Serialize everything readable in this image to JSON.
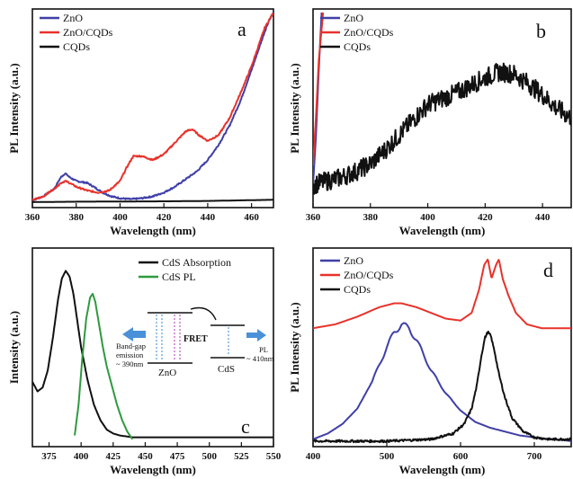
{
  "colors": {
    "zno": "#3f3fa8",
    "zno_cqds": "#e8322b",
    "cqds": "#111111",
    "cds_abs": "#111111",
    "cds_pl": "#2e9a3e",
    "arrow": "#4a90d9",
    "excite": "#c040c0"
  },
  "chart_data": [
    {
      "id": "a",
      "type": "line",
      "letter": "a",
      "xlabel": "Wavelength (nm)",
      "ylabel": "PL Intensity (a.u.)",
      "xlim": [
        360,
        470
      ],
      "ylim": [
        0,
        1
      ],
      "xticks": [
        "360",
        "380",
        "400",
        "420",
        "440",
        "460"
      ],
      "legend": [
        "ZnO",
        "ZnO/CQDs",
        "CQDs"
      ],
      "series": [
        {
          "name": "ZnO",
          "color_key": "zno",
          "x": [
            360,
            365,
            370,
            373,
            375,
            377,
            380,
            385,
            388,
            392,
            396,
            400,
            405,
            410,
            415,
            420,
            425,
            430,
            435,
            440,
            445,
            450,
            455,
            460,
            463,
            466,
            468,
            470
          ],
          "y": [
            0.02,
            0.04,
            0.08,
            0.14,
            0.16,
            0.14,
            0.12,
            0.11,
            0.09,
            0.06,
            0.04,
            0.03,
            0.025,
            0.03,
            0.04,
            0.06,
            0.09,
            0.13,
            0.17,
            0.23,
            0.31,
            0.41,
            0.54,
            0.7,
            0.8,
            0.9,
            0.96,
            1.0
          ]
        },
        {
          "name": "ZnO/CQDs",
          "color_key": "zno_cqds",
          "x": [
            360,
            365,
            370,
            373,
            375,
            377,
            380,
            385,
            390,
            395,
            400,
            403,
            406,
            410,
            415,
            420,
            425,
            430,
            433,
            436,
            440,
            445,
            450,
            455,
            460,
            463,
            466,
            470
          ],
          "y": [
            0.02,
            0.04,
            0.08,
            0.11,
            0.12,
            0.11,
            0.09,
            0.07,
            0.06,
            0.07,
            0.12,
            0.19,
            0.25,
            0.25,
            0.23,
            0.26,
            0.32,
            0.38,
            0.39,
            0.36,
            0.33,
            0.36,
            0.45,
            0.58,
            0.72,
            0.82,
            0.92,
            1.0
          ]
        },
        {
          "name": "CQDs",
          "color_key": "cqds",
          "x": [
            360,
            380,
            400,
            420,
            440,
            460,
            470
          ],
          "y": [
            0.01,
            0.012,
            0.013,
            0.014,
            0.016,
            0.02,
            0.022
          ]
        }
      ]
    },
    {
      "id": "b",
      "type": "line",
      "letter": "b",
      "xlabel": "Wavelength (nm)",
      "ylabel": "PL Intensity (a.u.)",
      "xlim": [
        360,
        450
      ],
      "ylim": [
        0,
        1
      ],
      "xticks": [
        "360",
        "380",
        "400",
        "420",
        "440"
      ],
      "legend": [
        "ZnO",
        "ZnO/CQDs",
        "CQDs"
      ],
      "series": [
        {
          "name": "ZnO",
          "color_key": "zno",
          "x": [
            360,
            361,
            362,
            363
          ],
          "y": [
            0.1,
            0.35,
            0.7,
            1.0
          ]
        },
        {
          "name": "ZnO/CQDs",
          "color_key": "zno_cqds",
          "x": [
            360,
            361,
            362,
            363.5
          ],
          "y": [
            0.2,
            0.45,
            0.75,
            1.0
          ]
        },
        {
          "name": "CQDs",
          "color_key": "cqds",
          "x": [
            360,
            365,
            370,
            375,
            380,
            385,
            390,
            395,
            400,
            405,
            410,
            415,
            420,
            425,
            430,
            435,
            440,
            445,
            450
          ],
          "y": [
            0.1,
            0.12,
            0.14,
            0.17,
            0.21,
            0.28,
            0.36,
            0.44,
            0.52,
            0.55,
            0.58,
            0.62,
            0.66,
            0.69,
            0.68,
            0.63,
            0.57,
            0.5,
            0.45
          ]
        }
      ]
    },
    {
      "id": "c",
      "type": "line",
      "letter": "c",
      "xlabel": "Wavelength (nm)",
      "ylabel": "Intensity (a.u.)",
      "xlim": [
        362,
        550
      ],
      "ylim": [
        0,
        1
      ],
      "xticks": [
        "375",
        "400",
        "425",
        "450",
        "475",
        "500",
        "525",
        "550"
      ],
      "xtick_values": [
        375,
        400,
        425,
        450,
        475,
        500,
        525,
        550
      ],
      "legend": [
        "CdS Absorption",
        "CdS PL"
      ],
      "series": [
        {
          "name": "CdS Absorption",
          "color_key": "cds_abs",
          "x": [
            362,
            366,
            370,
            374,
            378,
            382,
            385,
            388,
            391,
            394,
            397,
            400,
            405,
            410,
            415,
            420,
            425,
            430,
            440,
            460,
            500,
            550
          ],
          "y": [
            0.32,
            0.27,
            0.29,
            0.38,
            0.55,
            0.75,
            0.86,
            0.9,
            0.87,
            0.78,
            0.64,
            0.5,
            0.33,
            0.2,
            0.12,
            0.07,
            0.05,
            0.04,
            0.03,
            0.03,
            0.03,
            0.03
          ]
        },
        {
          "name": "CdS PL",
          "color_key": "cds_pl",
          "x": [
            395,
            398,
            401,
            404,
            407,
            409,
            411,
            414,
            417,
            420,
            424,
            428,
            432,
            436,
            440
          ],
          "y": [
            0.04,
            0.2,
            0.45,
            0.65,
            0.76,
            0.78,
            0.74,
            0.62,
            0.5,
            0.4,
            0.3,
            0.2,
            0.12,
            0.06,
            0.02
          ]
        }
      ],
      "inset": {
        "label_left": "Band-gap emission ~ 390nm",
        "left_line1": "Band-gap",
        "left_line2": "emission",
        "left_line3": "~ 390nm",
        "fret": "FRET",
        "zno": "ZnO",
        "cds": "CdS",
        "pl_line1": "PL",
        "pl_line2": "~ 410nm"
      }
    },
    {
      "id": "d",
      "type": "line",
      "letter": "d",
      "xlabel": "Wavelength (nm)",
      "ylabel": "PL Intensity (a.u.)",
      "xlim": [
        400,
        750
      ],
      "ylim": [
        0,
        1
      ],
      "xticks": [
        "400",
        "500",
        "600",
        "700"
      ],
      "xtick_values": [
        400,
        500,
        600,
        700
      ],
      "legend": [
        "ZnO",
        "ZnO/CQDs",
        "CQDs"
      ],
      "series": [
        {
          "name": "ZnO",
          "color_key": "zno",
          "x": [
            400,
            420,
            440,
            460,
            480,
            500,
            510,
            520,
            530,
            540,
            550,
            560,
            580,
            600,
            620,
            640,
            660,
            680,
            700,
            720,
            740,
            750
          ],
          "y": [
            0.02,
            0.05,
            0.1,
            0.18,
            0.32,
            0.5,
            0.58,
            0.62,
            0.6,
            0.54,
            0.46,
            0.38,
            0.26,
            0.17,
            0.11,
            0.08,
            0.06,
            0.04,
            0.03,
            0.02,
            0.015,
            0.01
          ]
        },
        {
          "name": "ZnO/CQDs",
          "color_key": "zno_cqds",
          "x": [
            400,
            430,
            460,
            490,
            510,
            520,
            540,
            560,
            580,
            600,
            615,
            625,
            632,
            637,
            642,
            648,
            652,
            657,
            665,
            675,
            690,
            710,
            730,
            750
          ],
          "y": [
            0.6,
            0.62,
            0.66,
            0.71,
            0.73,
            0.73,
            0.71,
            0.68,
            0.65,
            0.64,
            0.68,
            0.8,
            0.93,
            0.96,
            0.86,
            0.93,
            0.96,
            0.86,
            0.77,
            0.68,
            0.62,
            0.6,
            0.6,
            0.6
          ]
        },
        {
          "name": "CQDs",
          "color_key": "cqds",
          "x": [
            400,
            500,
            560,
            590,
            605,
            615,
            622,
            628,
            633,
            637,
            641,
            646,
            652,
            660,
            670,
            685,
            700,
            720,
            750
          ],
          "y": [
            0.01,
            0.01,
            0.02,
            0.05,
            0.1,
            0.18,
            0.3,
            0.45,
            0.55,
            0.58,
            0.56,
            0.48,
            0.36,
            0.24,
            0.13,
            0.06,
            0.03,
            0.02,
            0.02
          ]
        }
      ]
    }
  ]
}
